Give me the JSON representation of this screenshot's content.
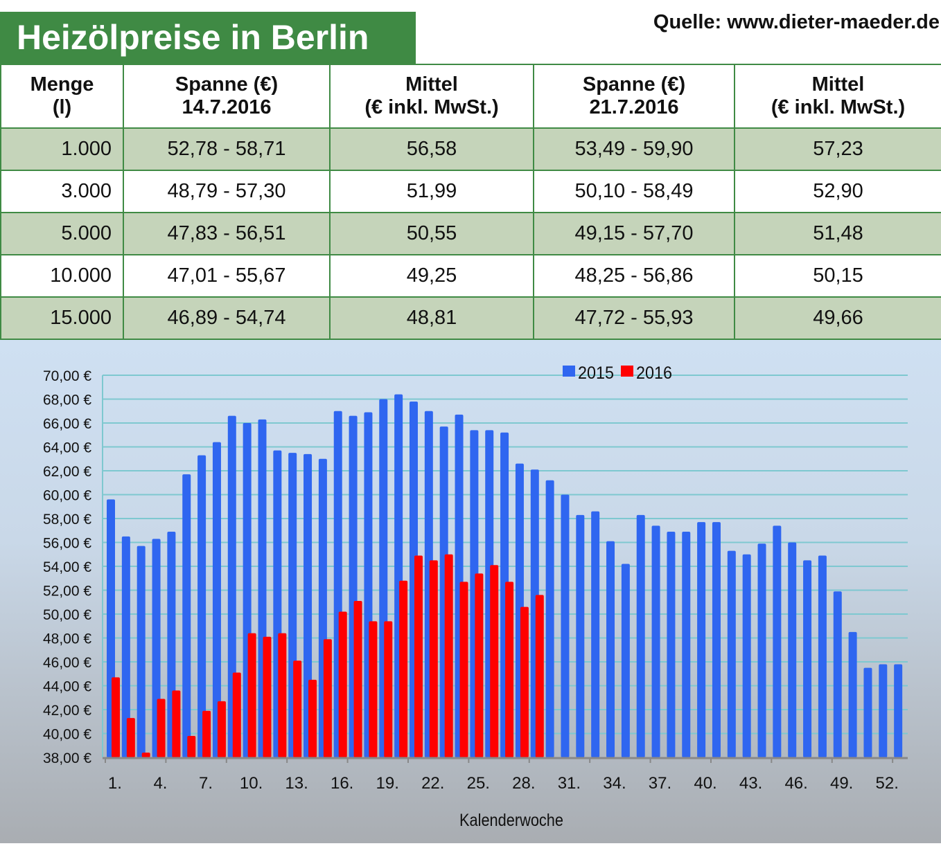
{
  "title": "Heizölpreise in Berlin",
  "source": "Quelle: www.dieter-maeder.de",
  "table": {
    "headers": [
      [
        "Menge",
        "(l)"
      ],
      [
        "Spanne (€)",
        "14.7.2016"
      ],
      [
        "Mittel",
        "(€ inkl. MwSt.)"
      ],
      [
        "Spanne (€)",
        "21.7.2016"
      ],
      [
        "Mittel",
        "(€ inkl. MwSt.)"
      ]
    ],
    "rows": [
      [
        "1.000",
        "52,78 - 58,71",
        "56,58",
        "53,49 - 59,90",
        "57,23"
      ],
      [
        "3.000",
        "48,79 - 57,30",
        "51,99",
        "50,10 - 58,49",
        "52,90"
      ],
      [
        "5.000",
        "47,83 - 56,51",
        "50,55",
        "49,15 - 57,70",
        "51,48"
      ],
      [
        "10.000",
        "47,01 - 55,67",
        "49,25",
        "48,25 - 56,86",
        "50,15"
      ],
      [
        "15.000",
        "46,89 - 54,74",
        "48,81",
        "47,72 - 55,93",
        "49,66"
      ]
    ]
  },
  "colors": {
    "accent": "#3f8a44",
    "row_shade": "#c5d4ba",
    "series_2015": "#2f66f0",
    "series_2016": "#ff0000",
    "grid": "#7ec8d0"
  },
  "chart_data": {
    "type": "bar",
    "xlabel": "Kalenderwoche",
    "ylabel": "",
    "ylim": [
      38,
      70
    ],
    "yticks": [
      "38,00 €",
      "40,00 €",
      "42,00 €",
      "44,00 €",
      "46,00 €",
      "48,00 €",
      "50,00 €",
      "52,00 €",
      "54,00 €",
      "56,00 €",
      "58,00 €",
      "60,00 €",
      "62,00 €",
      "64,00 €",
      "66,00 €",
      "68,00 €",
      "70,00 €"
    ],
    "xtick_labels": [
      "1.",
      "4.",
      "7.",
      "10.",
      "13.",
      "16.",
      "19.",
      "22.",
      "25.",
      "28.",
      "31.",
      "34.",
      "37.",
      "40.",
      "43.",
      "46.",
      "49.",
      "52."
    ],
    "legend_position": "top-center",
    "grid": true,
    "weeks": [
      1,
      2,
      3,
      4,
      5,
      6,
      7,
      8,
      9,
      10,
      11,
      12,
      13,
      14,
      15,
      16,
      17,
      18,
      19,
      20,
      21,
      22,
      23,
      24,
      25,
      26,
      27,
      28,
      29,
      30,
      31,
      32,
      33,
      34,
      35,
      36,
      37,
      38,
      39,
      40,
      41,
      42,
      43,
      44,
      45,
      46,
      47,
      48,
      49,
      50,
      51,
      52,
      53
    ],
    "series": [
      {
        "name": "2015",
        "values": [
          59.6,
          56.5,
          55.7,
          56.3,
          56.9,
          61.7,
          63.3,
          64.4,
          66.6,
          66.0,
          66.3,
          63.7,
          63.5,
          63.4,
          63.0,
          67.0,
          66.6,
          66.9,
          68.0,
          68.4,
          67.8,
          67.0,
          65.7,
          66.7,
          65.4,
          65.4,
          65.2,
          62.6,
          62.1,
          61.2,
          60.0,
          58.3,
          58.6,
          56.1,
          54.2,
          58.3,
          57.4,
          56.9,
          56.9,
          57.7,
          57.7,
          55.3,
          55.0,
          55.9,
          57.4,
          56.0,
          54.5,
          54.9,
          51.9,
          48.5,
          45.5,
          45.8,
          45.8
        ]
      },
      {
        "name": "2016",
        "values": [
          44.7,
          41.3,
          38.4,
          42.9,
          43.6,
          39.8,
          41.9,
          42.7,
          45.1,
          48.4,
          48.1,
          48.4,
          46.1,
          44.5,
          47.9,
          50.2,
          51.1,
          49.4,
          49.4,
          52.8,
          54.9,
          54.5,
          55.0,
          52.7,
          53.4,
          54.1,
          52.7,
          50.6,
          51.6
        ]
      }
    ]
  }
}
